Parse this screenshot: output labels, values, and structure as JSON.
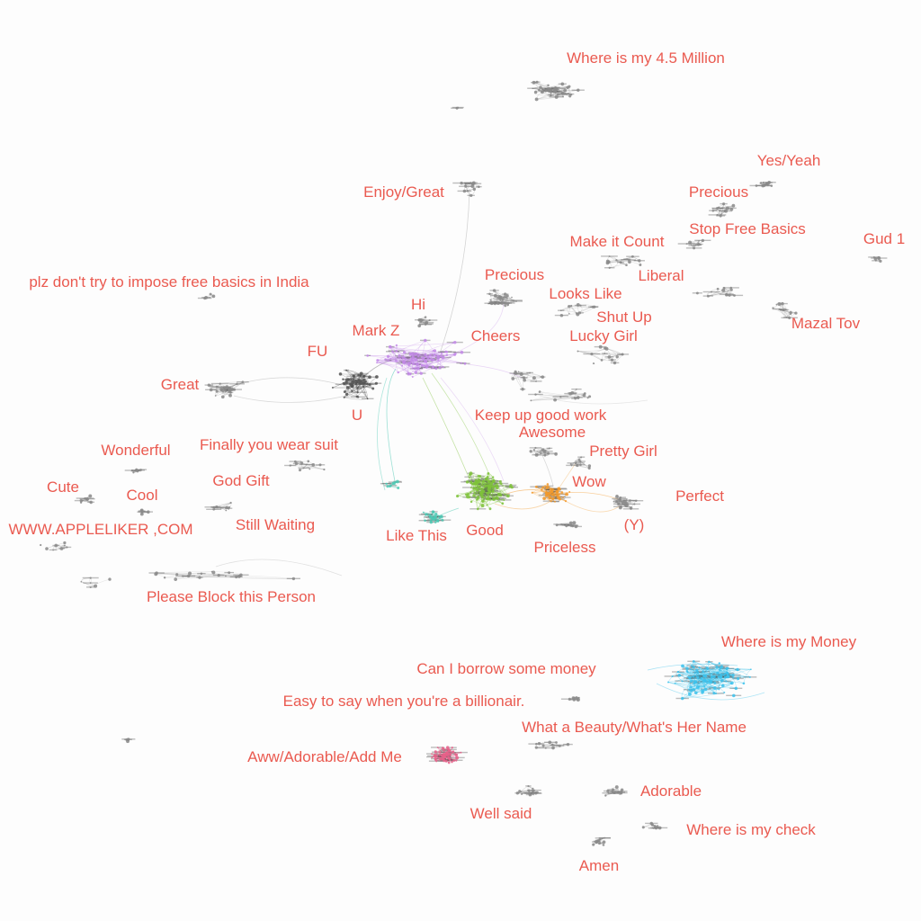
{
  "colors": {
    "label": "#ea5a50",
    "purple_cluster": "#c38ae8",
    "green_cluster": "#7ec23a",
    "orange_cluster": "#f39a2b",
    "teal_cluster": "#4cc9b4",
    "blue_cluster": "#3cc2ec",
    "pink_cluster": "#e8608a",
    "gray_cluster": "#8a8a8a",
    "dark_cluster": "#555555"
  },
  "labels": {
    "where_45_million": "Where is my 4.5 Million",
    "yes_yeah": "Yes/Yeah",
    "enjoy_great": "Enjoy/Great",
    "precious_top": "Precious",
    "stop_free_basics": "Stop Free Basics",
    "make_it_count": "Make it Count",
    "gud_1": "Gud 1",
    "liberal": "Liberal",
    "plz_free_basics": "plz don't try to impose free basics in India",
    "precious_mid": "Precious",
    "looks_like": "Looks Like",
    "hi": "Hi",
    "shut_up": "Shut Up",
    "mazal_tov": "Mazal Tov",
    "mark_z": "Mark Z",
    "cheers": "Cheers",
    "lucky_girl": "Lucky Girl",
    "fu": "FU",
    "great": "Great",
    "u": "U",
    "keep_up_good_work": "Keep up good work",
    "awesome": "Awesome",
    "wonderful": "Wonderful",
    "finally_suit": "Finally you wear suit",
    "pretty_girl": "Pretty Girl",
    "god_gift": "God Gift",
    "wow": "Wow",
    "cute": "Cute",
    "cool": "Cool",
    "perfect": "Perfect",
    "still_waiting": "Still Waiting",
    "y": "(Y)",
    "appleliker": "WWW.APPLELIKER ,COM",
    "like_this": "Like This",
    "good": "Good",
    "priceless": "Priceless",
    "block_person": "Please Block this Person",
    "where_money": "Where is my Money",
    "borrow_money": "Can I borrow some money",
    "easy_billionair": "Easy to say when you're a billionair.",
    "beauty_name": "What a Beauty/What's Her Name",
    "aww_adorable": "Aww/Adorable/Add Me",
    "adorable": "Adorable",
    "well_said": "Well said",
    "where_check": "Where is my check",
    "amen": "Amen"
  }
}
